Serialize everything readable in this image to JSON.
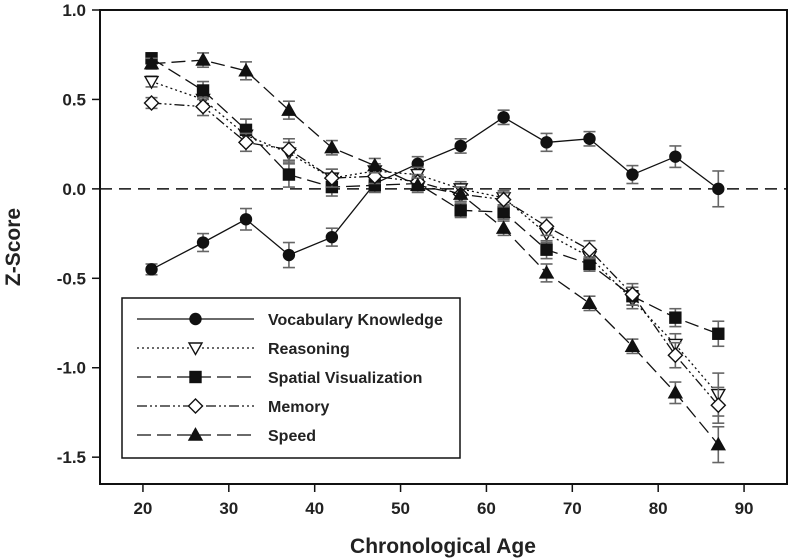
{
  "chart_data": {
    "type": "line",
    "title": "",
    "xlabel": "Chronological Age",
    "ylabel": "Z-Score",
    "xlim": [
      15,
      95
    ],
    "ylim": [
      -1.65,
      1.0
    ],
    "x_ticks": [
      20,
      30,
      40,
      50,
      60,
      70,
      80,
      90
    ],
    "y_ticks": [
      1.0,
      0.5,
      0.0,
      -0.5,
      -1.0,
      -1.5
    ],
    "x_tick_labels": [
      "20",
      "30",
      "40",
      "50",
      "60",
      "70",
      "80",
      "90"
    ],
    "y_tick_labels": [
      "1.0",
      "0.5",
      "0.0",
      "-0.5",
      "-1.0",
      "-1.5"
    ],
    "reference_line": {
      "y": 0.0,
      "style": "dashed"
    },
    "legend_position": "bottom-left",
    "x": [
      21,
      27,
      32,
      37,
      42,
      47,
      52,
      57,
      62,
      67,
      72,
      77,
      82,
      87
    ],
    "series": [
      {
        "name": "Vocabulary Knowledge",
        "marker": "circle-filled",
        "dash": "solid",
        "values": [
          -0.45,
          -0.3,
          -0.17,
          -0.37,
          -0.27,
          0.03,
          0.14,
          0.24,
          0.4,
          0.26,
          0.28,
          0.08,
          0.18,
          0.0
        ],
        "errors": [
          0.03,
          0.05,
          0.06,
          0.07,
          0.05,
          0.04,
          0.04,
          0.04,
          0.04,
          0.05,
          0.04,
          0.05,
          0.06,
          0.1
        ]
      },
      {
        "name": "Reasoning",
        "marker": "triangle-down-open",
        "dash": "dotted",
        "values": [
          0.6,
          0.5,
          0.3,
          0.2,
          0.06,
          0.1,
          0.08,
          0.0,
          -0.05,
          -0.25,
          -0.38,
          -0.62,
          -0.87,
          -1.15
        ],
        "errors": [
          0.03,
          0.04,
          0.05,
          0.06,
          0.05,
          0.04,
          0.04,
          0.04,
          0.04,
          0.05,
          0.05,
          0.05,
          0.06,
          0.12
        ]
      },
      {
        "name": "Spatial Visualization",
        "marker": "square-filled",
        "dash": "longdash",
        "values": [
          0.73,
          0.55,
          0.33,
          0.08,
          0.01,
          0.02,
          0.03,
          -0.12,
          -0.13,
          -0.34,
          -0.42,
          -0.6,
          -0.72,
          -0.81
        ],
        "errors": [
          0.03,
          0.05,
          0.06,
          0.07,
          0.05,
          0.04,
          0.04,
          0.04,
          0.04,
          0.05,
          0.04,
          0.05,
          0.05,
          0.07
        ]
      },
      {
        "name": "Memory",
        "marker": "diamond-open",
        "dash": "dashdotdot",
        "values": [
          0.48,
          0.46,
          0.26,
          0.22,
          0.06,
          0.07,
          0.04,
          -0.03,
          -0.06,
          -0.21,
          -0.34,
          -0.59,
          -0.93,
          -1.21
        ],
        "errors": [
          0.03,
          0.05,
          0.05,
          0.06,
          0.05,
          0.04,
          0.04,
          0.04,
          0.04,
          0.05,
          0.05,
          0.06,
          0.07,
          0.1
        ]
      },
      {
        "name": "Speed",
        "marker": "triangle-up-filled",
        "dash": "longdash",
        "values": [
          0.7,
          0.72,
          0.66,
          0.44,
          0.23,
          0.13,
          0.02,
          -0.03,
          -0.22,
          -0.47,
          -0.64,
          -0.88,
          -1.14,
          -1.43
        ],
        "errors": [
          0.03,
          0.04,
          0.05,
          0.05,
          0.04,
          0.04,
          0.04,
          0.04,
          0.04,
          0.05,
          0.04,
          0.04,
          0.06,
          0.1
        ]
      }
    ]
  }
}
